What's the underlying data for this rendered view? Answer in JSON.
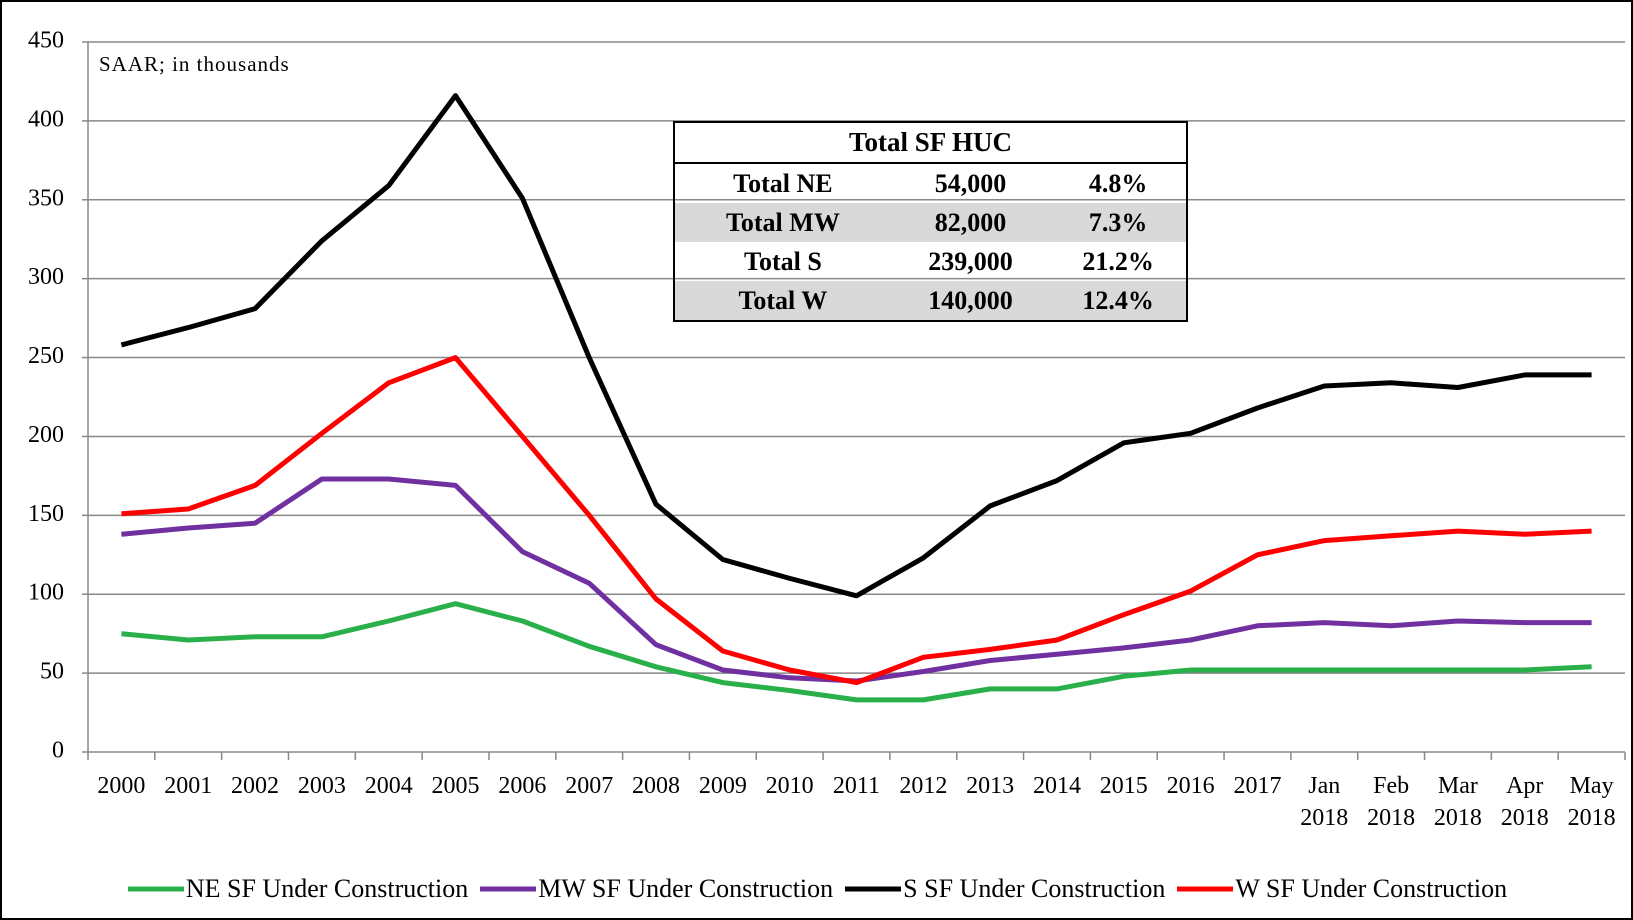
{
  "chart_data": {
    "type": "line",
    "annotation": "SAAR; in thousands",
    "categories": [
      "2000",
      "2001",
      "2002",
      "2003",
      "2004",
      "2005",
      "2006",
      "2007",
      "2008",
      "2009",
      "2010",
      "2011",
      "2012",
      "2013",
      "2014",
      "2015",
      "2016",
      "2017",
      "Jan 2018",
      "Feb 2018",
      "Mar 2018",
      "Apr 2018",
      "May 2018"
    ],
    "series": [
      {
        "name": "NE SF Under Construction",
        "color": "#2ab04a",
        "values": [
          75,
          71,
          73,
          73,
          83,
          94,
          83,
          67,
          54,
          44,
          39,
          33,
          33,
          40,
          40,
          48,
          52,
          52,
          52,
          52,
          52,
          52,
          54
        ]
      },
      {
        "name": "MW SF Under Construction",
        "color": "#7030a0",
        "values": [
          138,
          142,
          145,
          173,
          173,
          169,
          127,
          107,
          68,
          52,
          47,
          45,
          51,
          58,
          62,
          66,
          71,
          80,
          82,
          80,
          83,
          82,
          82
        ]
      },
      {
        "name": "S SF Under Construction",
        "color": "#000000",
        "values": [
          258,
          269,
          281,
          324,
          359,
          416,
          351,
          250,
          157,
          122,
          110,
          99,
          123,
          156,
          172,
          196,
          202,
          218,
          232,
          234,
          231,
          239,
          239
        ]
      },
      {
        "name": "W SF Under Construction",
        "color": "#ff0000",
        "values": [
          151,
          154,
          169,
          202,
          234,
          250,
          200,
          150,
          97,
          64,
          52,
          44,
          60,
          65,
          71,
          87,
          102,
          125,
          134,
          137,
          140,
          138,
          140
        ]
      }
    ],
    "ylim": [
      0,
      450
    ],
    "yticks": [
      0,
      50,
      100,
      150,
      200,
      250,
      300,
      350,
      400,
      450
    ],
    "grid": true,
    "table": {
      "title": "Total SF HUC",
      "rows": [
        [
          "Total NE",
          "54,000",
          "4.8%"
        ],
        [
          "Total MW",
          "82,000",
          "7.3%"
        ],
        [
          "Total S",
          "239,000",
          "21.2%"
        ],
        [
          "Total W",
          "140,000",
          "12.4%"
        ]
      ]
    }
  }
}
